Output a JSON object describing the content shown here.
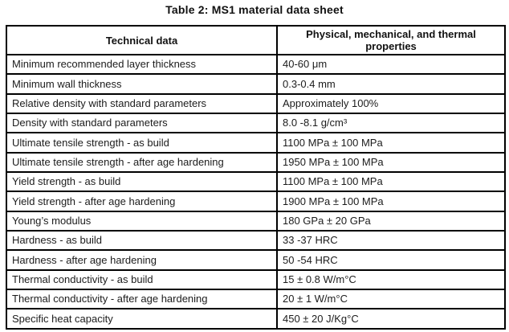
{
  "title": "Table 2: MS1 material data sheet",
  "table": {
    "headers": {
      "col1": "Technical data",
      "col2": "Physical, mechanical, and thermal properties"
    },
    "rows": [
      {
        "property": "Minimum recommended layer thickness",
        "value": "40-60 μm"
      },
      {
        "property": "Minimum wall thickness",
        "value": "0.3-0.4 mm"
      },
      {
        "property": "Relative density with standard parameters",
        "value": "Approximately 100%"
      },
      {
        "property": "Density with standard parameters",
        "value": "8.0 -8.1 g/cm³"
      },
      {
        "property": "Ultimate tensile strength - as build",
        "value": "1100 MPa ± 100 MPa"
      },
      {
        "property": "Ultimate tensile strength - after age hardening",
        "value": "1950 MPa ± 100 MPa"
      },
      {
        "property": "Yield strength - as build",
        "value": "1100 MPa ± 100 MPa"
      },
      {
        "property": "Yield strength - after age hardening",
        "value": "1900 MPa ± 100 MPa"
      },
      {
        "property": "Young’s modulus",
        "value": "180 GPa ± 20 GPa"
      },
      {
        "property": "Hardness - as build",
        "value": "33 -37 HRC"
      },
      {
        "property": "Hardness - after age hardening",
        "value": "50 -54 HRC"
      },
      {
        "property": "Thermal conductivity - as build",
        "value": "15 ± 0.8 W/m°C"
      },
      {
        "property": "Thermal conductivity - after age hardening",
        "value": "20 ± 1 W/m°C"
      },
      {
        "property": "Specific heat capacity",
        "value": "450 ± 20 J/Kg°C"
      }
    ]
  }
}
